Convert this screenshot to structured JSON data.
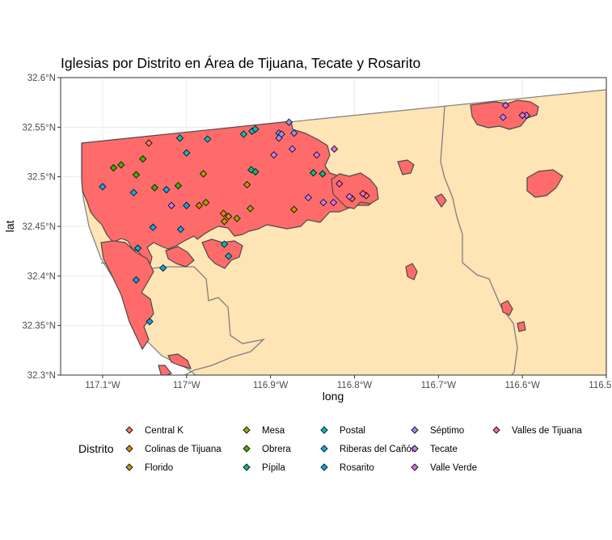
{
  "chart_data": {
    "type": "map",
    "title": "Iglesias por Distrito en Área de Tijuana, Tecate y Rosarito",
    "xlabel": "long",
    "ylabel": "lat",
    "xlim": [
      -117.15,
      -116.5
    ],
    "ylim": [
      32.3,
      32.6
    ],
    "x_ticks": [
      {
        "value": -117.1,
        "label": "117.1°W"
      },
      {
        "value": -117.0,
        "label": "117°W"
      },
      {
        "value": -116.9,
        "label": "116.9°W"
      },
      {
        "value": -116.8,
        "label": "116.8°W"
      },
      {
        "value": -116.7,
        "label": "116.7°W"
      },
      {
        "value": -116.6,
        "label": "116.6°W"
      },
      {
        "value": -116.5,
        "label": "116.5°W"
      }
    ],
    "y_ticks": [
      {
        "value": 32.3,
        "label": "32.3°N"
      },
      {
        "value": 32.35,
        "label": "32.35°N"
      },
      {
        "value": 32.4,
        "label": "32.4°N"
      },
      {
        "value": 32.45,
        "label": "32.45°N"
      },
      {
        "value": 32.5,
        "label": "32.5°N"
      },
      {
        "value": 32.55,
        "label": "32.55°N"
      },
      {
        "value": 32.6,
        "label": "32.6°N"
      }
    ],
    "grid": true,
    "legend": {
      "title": "Distrito",
      "placement": "bottom"
    },
    "colors": {
      "land": "#ffe4b5",
      "urban": "#ff6b6b",
      "urban_border": "#4a4a4a",
      "boundary": "#7f7f7f",
      "grid": "#ebebeb"
    },
    "districts": [
      {
        "name": "Central K",
        "color": "#f8766d"
      },
      {
        "name": "Colinas de Tijuana",
        "color": "#e58700"
      },
      {
        "name": "Florido",
        "color": "#c99800"
      },
      {
        "name": "Mesa",
        "color": "#a3a500"
      },
      {
        "name": "Obrera",
        "color": "#39b600"
      },
      {
        "name": "Pípila",
        "color": "#00bf7d"
      },
      {
        "name": "Postal",
        "color": "#00bfc4"
      },
      {
        "name": "Riberas del Cañón",
        "color": "#00b0f6"
      },
      {
        "name": "Rosarito",
        "color": "#00a9ff"
      },
      {
        "name": "Séptimo",
        "color": "#9590ff"
      },
      {
        "name": "Tecate",
        "color": "#c77cff"
      },
      {
        "name": "Valle Verde",
        "color": "#e76bf3"
      },
      {
        "name": "Valles de Tijuana",
        "color": "#ff62bc"
      }
    ],
    "churches": [
      {
        "district": "Central K",
        "points": [
          [
            -117.045,
            32.534
          ],
          [
            -116.803,
            32.478
          ],
          [
            -116.786,
            32.481
          ]
        ]
      },
      {
        "district": "Colinas de Tijuana",
        "points": [
          [
            -116.985,
            32.471
          ],
          [
            -116.956,
            32.463
          ]
        ]
      },
      {
        "district": "Florido",
        "points": [
          [
            -116.95,
            32.46
          ],
          [
            -116.955,
            32.455
          ],
          [
            -116.928,
            32.492
          ],
          [
            -116.872,
            32.467
          ]
        ]
      },
      {
        "district": "Mesa",
        "points": [
          [
            -116.98,
            32.503
          ],
          [
            -116.977,
            32.474
          ],
          [
            -116.924,
            32.468
          ],
          [
            -116.94,
            32.458
          ]
        ]
      },
      {
        "district": "Obrera",
        "points": [
          [
            -117.087,
            32.509
          ],
          [
            -117.078,
            32.512
          ],
          [
            -117.06,
            32.502
          ],
          [
            -117.052,
            32.518
          ],
          [
            -117.038,
            32.489
          ],
          [
            -117.01,
            32.491
          ]
        ]
      },
      {
        "district": "Pípila",
        "points": [
          [
            -116.923,
            32.507
          ],
          [
            -116.918,
            32.505
          ],
          [
            -116.849,
            32.504
          ],
          [
            -116.838,
            32.503
          ]
        ]
      },
      {
        "district": "Postal",
        "points": [
          [
            -116.932,
            32.543
          ],
          [
            -116.922,
            32.546
          ],
          [
            -116.918,
            32.548
          ],
          [
            -116.975,
            32.538
          ],
          [
            -117.008,
            32.539
          ],
          [
            -117.0,
            32.524
          ],
          [
            -116.955,
            32.432
          ],
          [
            -116.95,
            32.42
          ]
        ]
      },
      {
        "district": "Riberas del Cañón",
        "points": [
          [
            -117.1,
            32.49
          ],
          [
            -117.063,
            32.484
          ],
          [
            -117.04,
            32.449
          ],
          [
            -117.024,
            32.487
          ],
          [
            -117.007,
            32.447
          ],
          [
            -117.058,
            32.428
          ]
        ]
      },
      {
        "district": "Rosarito",
        "points": [
          [
            -117.06,
            32.396
          ],
          [
            -117.044,
            32.354
          ],
          [
            -117.028,
            32.408
          ],
          [
            -117.0,
            32.471
          ]
        ]
      },
      {
        "district": "Séptimo",
        "points": [
          [
            -116.878,
            32.555
          ],
          [
            -116.89,
            32.544
          ],
          [
            -116.887,
            32.543
          ],
          [
            -116.89,
            32.539
          ],
          [
            -116.872,
            32.544
          ]
        ]
      },
      {
        "district": "Tecate",
        "points": [
          [
            -116.896,
            32.522
          ],
          [
            -116.874,
            32.528
          ],
          [
            -116.855,
            32.479
          ],
          [
            -116.837,
            32.474
          ],
          [
            -116.623,
            32.56
          ],
          [
            -116.595,
            32.562
          ],
          [
            -117.018,
            32.471
          ]
        ]
      },
      {
        "district": "Valle Verde",
        "points": [
          [
            -116.845,
            32.522
          ],
          [
            -116.824,
            32.528
          ],
          [
            -116.806,
            32.48
          ],
          [
            -116.825,
            32.474
          ],
          [
            -116.62,
            32.572
          ],
          [
            -116.6,
            32.562
          ]
        ]
      },
      {
        "district": "Valles de Tijuana",
        "points": [
          [
            -116.818,
            32.493
          ],
          [
            -116.79,
            32.483
          ]
        ]
      }
    ]
  }
}
